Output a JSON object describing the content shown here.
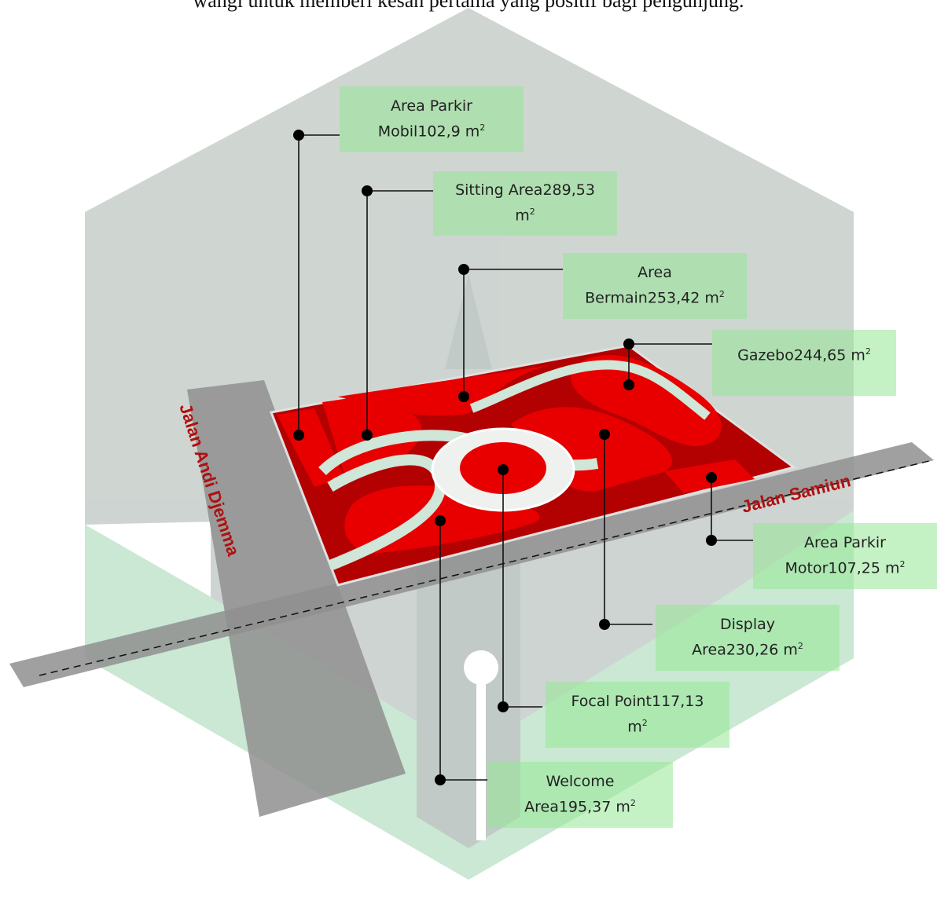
{
  "caption": "wangi untuk memberi kesan pertama yang positif bagi pengunjung.",
  "roads": {
    "andi_djemma": "Jalan Andi Djemma",
    "samiun": "Jalan Samiun"
  },
  "zones": [
    {
      "id": "parkir-mobil",
      "line1": "Area Parkir",
      "line2": "Mobil102,9 m",
      "unit_sup": "2"
    },
    {
      "id": "sitting",
      "line1": "Sitting Area289,53",
      "line2": "m",
      "unit_sup": "2"
    },
    {
      "id": "bermain",
      "line1": "Area",
      "line2": "Bermain253,42 m",
      "unit_sup": "2"
    },
    {
      "id": "gazebo",
      "line1": "Gazebo244,65 m",
      "line2": "",
      "unit_sup": "2"
    },
    {
      "id": "parkir-motor",
      "line1": "Area Parkir",
      "line2": "Motor107,25 m",
      "unit_sup": "2"
    },
    {
      "id": "display",
      "line1": "Display",
      "line2": "Area230,26 m",
      "unit_sup": "2"
    },
    {
      "id": "focal",
      "line1": "Focal Point117,13",
      "line2": "m",
      "unit_sup": "2"
    },
    {
      "id": "welcome",
      "line1": "Welcome",
      "line2": "Area195,37  m",
      "unit_sup": "2"
    }
  ],
  "colors": {
    "zone_red": "#e80000",
    "dark_red": "#b30000",
    "path_green": "#cfe6d8",
    "road_gray": "#8f8f8f",
    "watermark_gray": "#8c9c94",
    "watermark_green": "#5fbf7f",
    "label_bg": "#96e896",
    "road_text": "#b01010"
  }
}
